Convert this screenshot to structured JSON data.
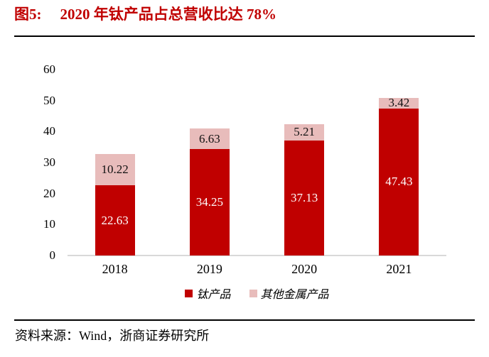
{
  "header": {
    "figure_label": "图5:",
    "title": "2020 年钛产品占总营收比达 78%"
  },
  "chart_data": {
    "type": "bar",
    "stacked": true,
    "categories": [
      "2018",
      "2019",
      "2020",
      "2021"
    ],
    "series": [
      {
        "name": "钛产品",
        "color": "#c00000",
        "label_color": "#ffffff",
        "values": [
          22.63,
          34.25,
          37.13,
          47.43
        ]
      },
      {
        "name": "其他金属产品",
        "color": "#e8bcbb",
        "label_color": "#111111",
        "values": [
          10.22,
          6.63,
          5.21,
          3.42
        ]
      }
    ],
    "y_ticks": [
      0,
      10,
      20,
      30,
      40,
      50,
      60
    ],
    "ylim": [
      0,
      60
    ],
    "grid": false,
    "legend_position": "bottom",
    "axis_line_color": "#d9d9d9",
    "title": "2020 年钛产品占总营收比达 78%"
  },
  "footer": {
    "source": "资料来源：Wind，浙商证券研究所"
  }
}
